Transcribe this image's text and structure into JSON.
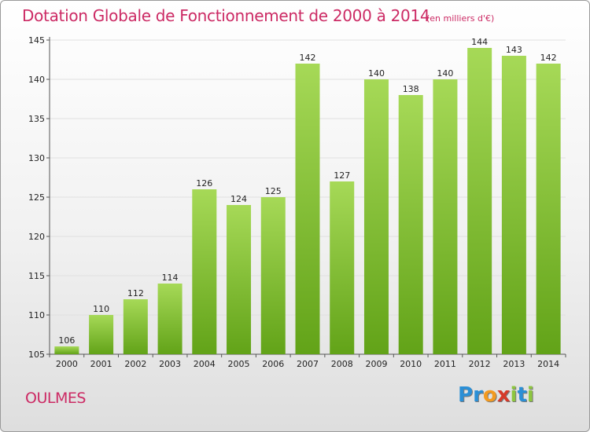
{
  "header": {
    "title": "Dotation Globale de Fonctionnement de 2000 à 2014",
    "unit": "(en milliers d'€)"
  },
  "footer": {
    "commune": "OULMES",
    "logo_letters": [
      "P",
      "r",
      "o",
      "x",
      "i",
      "t",
      "i"
    ]
  },
  "colors": {
    "title": "#cc2a64",
    "bar_light": "#a6d957",
    "bar_dark": "#62a318",
    "grid": "#e0e0e0",
    "logo": [
      "#2b8fd6",
      "#2b8fd6",
      "#f39a1f",
      "#d63a2a",
      "#8dc63f",
      "#2b8fd6",
      "#8dc63f"
    ]
  },
  "chart_data": {
    "type": "bar",
    "categories": [
      "2000",
      "2001",
      "2002",
      "2003",
      "2004",
      "2005",
      "2006",
      "2007",
      "2008",
      "2009",
      "2010",
      "2011",
      "2012",
      "2013",
      "2014"
    ],
    "values": [
      106,
      110,
      112,
      114,
      126,
      124,
      125,
      142,
      127,
      140,
      138,
      140,
      144,
      143,
      142
    ],
    "value_labels": [
      "106",
      "110",
      "112",
      "114",
      "126",
      "124",
      "125",
      "142",
      "127",
      "140",
      "138",
      "140",
      "144",
      "143",
      "142"
    ],
    "ylim": [
      105,
      145
    ],
    "yticks": [
      105,
      110,
      115,
      120,
      125,
      130,
      135,
      140,
      145
    ],
    "ytick_labels": [
      "105",
      "110",
      "115",
      "120",
      "125",
      "130",
      "135",
      "140",
      "145"
    ],
    "grid": true,
    "legend": "none"
  }
}
